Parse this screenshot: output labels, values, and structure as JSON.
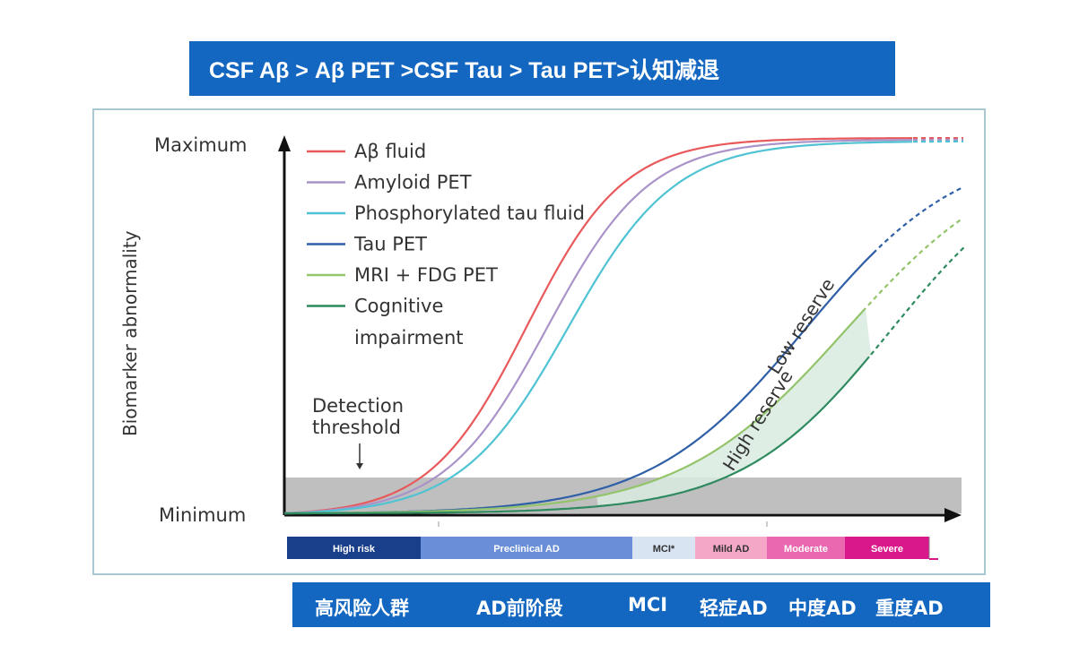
{
  "title": "CSF Aβ > Aβ PET >CSF Tau > Tau PET>认知减退",
  "chart": {
    "y_axis_label": "Biomarker abnormality",
    "y_max_label": "Maximum",
    "y_min_label": "Minimum",
    "detection_label_line1": "Detection",
    "detection_label_line2": "threshold",
    "low_reserve_label": "Low reserve",
    "high_reserve_label": "High reserve",
    "legend": [
      {
        "label": "Aβ fluid",
        "color": "#e8595b"
      },
      {
        "label": "Amyloid PET",
        "color": "#a993c9"
      },
      {
        "label": "Phosphorylated tau fluid",
        "color": "#4fc3d3"
      },
      {
        "label": "Tau PET",
        "color": "#2f5fa7"
      },
      {
        "label": "MRI + FDG PET",
        "color": "#93c36a"
      },
      {
        "label": "Cognitive",
        "color": "#2f8a5f"
      }
    ],
    "legend_extra": "impairment",
    "threshold_color": "#bfbfbf",
    "reserve_fill": "#d9ebe1"
  },
  "stages": [
    {
      "label": "High risk",
      "color": "#1a3f8a",
      "text_color": "#ffffff"
    },
    {
      "label": "Preclinical AD",
      "color": "#6a8fd8",
      "text_color": "#ffffff"
    },
    {
      "label": "MCI*",
      "color": "#d9e4f3",
      "text_color": "#333333"
    },
    {
      "label": "Mild AD",
      "color": "#f5a7c8",
      "text_color": "#333333"
    },
    {
      "label": "Moderate",
      "color": "#e968b0",
      "text_color": "#ffffff"
    },
    {
      "label": "Severe",
      "color": "#d9198b",
      "text_color": "#ffffff"
    }
  ],
  "bottom_labels": [
    "高风险人群",
    "AD前阶段",
    "MCI",
    "轻症AD",
    "中度AD",
    "重度AD"
  ]
}
